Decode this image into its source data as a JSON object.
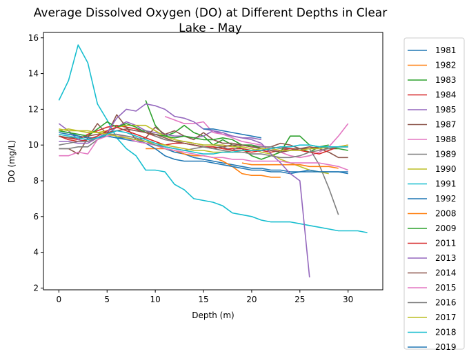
{
  "chart_data": {
    "type": "line",
    "title_line1": "Average Dissolved Oxygen (DO) at Different Depths in Clear",
    "title_line2": "Lake - May",
    "xlabel": "Depth (m)",
    "ylabel": "DO (mg/L)",
    "xlim": [
      -1.6,
      33.6
    ],
    "ylim": [
      1.9,
      16.3
    ],
    "xticks": [
      0,
      5,
      10,
      15,
      20,
      25,
      30
    ],
    "yticks": [
      2,
      4,
      6,
      8,
      10,
      12,
      14,
      16
    ],
    "grid": false,
    "legend_position": "outside-right",
    "series": [
      {
        "name": "1981",
        "color": "#1f77b4",
        "x": [
          0,
          1,
          2,
          3,
          4,
          5,
          6,
          7,
          8,
          9,
          10,
          11,
          12,
          13,
          14,
          15,
          16,
          17,
          18,
          19,
          20,
          21,
          22,
          23,
          24,
          25,
          26,
          27,
          28,
          29,
          30
        ],
        "y": [
          10.8,
          10.7,
          10.5,
          10.4,
          10.4,
          10.5,
          10.4,
          10.3,
          10.2,
          10.1,
          10.0,
          9.8,
          9.6,
          9.5,
          9.3,
          9.2,
          9.1,
          9.0,
          8.9,
          8.8,
          8.7,
          8.7,
          8.6,
          8.6,
          8.5,
          8.5,
          8.5,
          8.5,
          8.5,
          8.5,
          8.5
        ]
      },
      {
        "name": "1982",
        "color": "#ff7f0e",
        "x": [
          9,
          10,
          11,
          12,
          13,
          14,
          15,
          16,
          17,
          18,
          19,
          20,
          21,
          22,
          23
        ],
        "y": [
          9.8,
          9.8,
          9.8,
          9.7,
          9.5,
          9.4,
          9.4,
          9.3,
          9.1,
          8.8,
          8.4,
          8.3,
          8.3,
          8.2,
          8.2
        ]
      },
      {
        "name": "1983",
        "color": "#2ca02c",
        "x": [
          9,
          10,
          11,
          12,
          13,
          14,
          15,
          16,
          17,
          18,
          19,
          20,
          21,
          22,
          23,
          24,
          25,
          26,
          27,
          28
        ],
        "y": [
          12.5,
          11.1,
          10.5,
          10.7,
          11.1,
          10.7,
          10.5,
          10.0,
          10.3,
          10.0,
          9.8,
          9.4,
          9.2,
          9.4,
          9.6,
          9.7,
          9.8,
          9.6,
          9.9,
          10.0
        ]
      },
      {
        "name": "1984",
        "color": "#d62728",
        "x": [
          0,
          1,
          2,
          3,
          4,
          5,
          6,
          7,
          8,
          9,
          10,
          11,
          12,
          13,
          14,
          15,
          16,
          17,
          18,
          19,
          20,
          21,
          22,
          23,
          24,
          25,
          26,
          27,
          28,
          29
        ],
        "y": [
          10.5,
          10.4,
          10.3,
          10.6,
          10.8,
          11.0,
          11.1,
          11.0,
          10.9,
          10.7,
          10.5,
          10.3,
          10.2,
          10.1,
          10.0,
          9.9,
          9.9,
          9.8,
          9.8,
          9.8,
          9.7,
          9.7,
          9.6,
          9.7,
          9.8,
          9.8,
          9.8,
          9.9,
          9.9,
          9.9
        ]
      },
      {
        "name": "1985",
        "color": "#9467bd",
        "x": [
          0,
          1,
          2,
          3,
          4,
          5,
          6,
          7,
          8,
          9,
          10,
          11,
          12,
          13,
          14,
          15,
          16,
          17,
          18,
          19,
          20,
          21
        ],
        "y": [
          11.2,
          10.8,
          10.3,
          10.2,
          10.4,
          10.6,
          11.0,
          11.3,
          11.1,
          10.8,
          10.7,
          10.6,
          10.5,
          10.5,
          10.4,
          10.5,
          10.8,
          10.6,
          10.5,
          10.4,
          10.4,
          10.3
        ]
      },
      {
        "name": "1987",
        "color": "#8c564b",
        "x": [
          0,
          1,
          2,
          3,
          4,
          5,
          6,
          7,
          8,
          9,
          10,
          11,
          12,
          13,
          14,
          15,
          16,
          17,
          18,
          19,
          20,
          21,
          22,
          23,
          24,
          25,
          26,
          27,
          28,
          29,
          30
        ],
        "y": [
          9.8,
          9.8,
          9.5,
          10.4,
          11.2,
          10.6,
          11.7,
          11.0,
          10.3,
          10.4,
          11.0,
          10.6,
          10.8,
          10.5,
          10.3,
          10.7,
          10.3,
          10.1,
          10.1,
          10.0,
          9.9,
          9.9,
          9.9,
          10.1,
          10.0,
          9.8,
          9.9,
          9.8,
          9.6,
          9.3,
          9.3
        ]
      },
      {
        "name": "1988",
        "color": "#e377c2",
        "x": [
          11,
          12,
          13,
          14,
          15,
          16,
          17,
          18,
          19,
          20,
          21,
          22,
          23,
          24,
          25,
          26,
          27,
          28,
          29,
          30
        ],
        "y": [
          11.6,
          11.4,
          11.2,
          11.2,
          11.3,
          10.7,
          10.6,
          10.4,
          10.2,
          10.1,
          10.0,
          9.8,
          9.6,
          9.4,
          9.3,
          9.4,
          9.6,
          9.9,
          10.5,
          11.2
        ]
      },
      {
        "name": "1989",
        "color": "#7f7f7f",
        "x": [
          0,
          1,
          2,
          3,
          4,
          5,
          6,
          7,
          8,
          9,
          10,
          11,
          12,
          13,
          14,
          15,
          16,
          17,
          18,
          19,
          20,
          21,
          22,
          23,
          24,
          25,
          26,
          27,
          28,
          29
        ],
        "y": [
          9.8,
          9.8,
          9.9,
          9.9,
          10.3,
          10.6,
          10.8,
          10.9,
          10.8,
          10.8,
          10.5,
          10.3,
          10.2,
          10.2,
          10.1,
          10.0,
          10.0,
          9.9,
          9.7,
          10.0,
          10.0,
          9.9,
          9.9,
          9.8,
          9.8,
          9.8,
          9.8,
          8.9,
          7.6,
          6.1
        ]
      },
      {
        "name": "1990",
        "color": "#bcbd22",
        "x": [
          0,
          1,
          2,
          3,
          4,
          5,
          6,
          7,
          8,
          9,
          10,
          11,
          12,
          13,
          14,
          15,
          16,
          17,
          18,
          19,
          20,
          21,
          22,
          23,
          24,
          25,
          26,
          27,
          28
        ],
        "y": [
          10.8,
          10.9,
          10.8,
          10.8,
          10.7,
          10.8,
          11.0,
          11.1,
          11.1,
          11.1,
          10.8,
          10.5,
          10.3,
          10.2,
          10.1,
          10.0,
          10.0,
          10.0,
          9.9,
          9.9,
          9.8,
          9.6,
          9.5,
          9.2,
          9.0,
          8.8,
          8.6,
          8.5,
          8.4
        ]
      },
      {
        "name": "1991",
        "color": "#17becf",
        "x": [
          0,
          1,
          2,
          3,
          4,
          5,
          6,
          7,
          8,
          9,
          10,
          11,
          12,
          13,
          14,
          15,
          16,
          17,
          18,
          19,
          20,
          21,
          22,
          23,
          24,
          25,
          26,
          27,
          28,
          29,
          30,
          31,
          32
        ],
        "y": [
          12.5,
          13.6,
          15.6,
          14.6,
          12.3,
          11.4,
          10.4,
          9.8,
          9.4,
          8.6,
          8.6,
          8.5,
          7.8,
          7.5,
          7.0,
          6.9,
          6.8,
          6.6,
          6.2,
          6.1,
          6.0,
          5.8,
          5.7,
          5.7,
          5.7,
          5.6,
          5.5,
          5.4,
          5.3,
          5.2,
          5.2,
          5.2,
          5.1
        ]
      },
      {
        "name": "1992",
        "color": "#1f77b4",
        "x": [
          0,
          1,
          2,
          3,
          4,
          5,
          6,
          7,
          8,
          9,
          10,
          11,
          12,
          13,
          14,
          15,
          16,
          17,
          18,
          19,
          20,
          21,
          22,
          23,
          24,
          25,
          26,
          27,
          28,
          29,
          30
        ],
        "y": [
          10.7,
          10.6,
          10.5,
          10.4,
          10.4,
          10.5,
          10.4,
          10.4,
          10.3,
          10.1,
          9.8,
          9.4,
          9.2,
          9.1,
          9.1,
          9.1,
          9.0,
          8.9,
          8.8,
          8.7,
          8.6,
          8.6,
          8.5,
          8.5,
          8.4,
          8.5,
          8.6,
          8.5,
          8.5,
          8.5,
          8.4
        ]
      },
      {
        "name": "2008",
        "color": "#ff7f0e",
        "x": [
          19,
          20,
          21,
          22,
          23,
          24,
          25,
          26,
          27,
          28,
          29
        ],
        "y": [
          9.0,
          8.9,
          8.9,
          8.9,
          8.9,
          8.9,
          8.9,
          8.8,
          8.8,
          8.8,
          8.7
        ]
      },
      {
        "name": "2009",
        "color": "#2ca02c",
        "x": [
          0,
          1,
          2,
          3,
          4,
          5,
          6,
          7,
          8,
          9,
          10,
          11,
          12,
          13,
          14,
          15,
          16,
          17,
          18,
          19,
          20,
          21,
          22,
          23,
          24,
          25,
          26,
          27,
          28,
          29,
          30
        ],
        "y": [
          10.8,
          10.7,
          10.6,
          10.5,
          10.9,
          11.3,
          11.0,
          11.2,
          11.0,
          10.7,
          10.6,
          10.5,
          10.4,
          10.5,
          10.4,
          10.3,
          10.3,
          10.4,
          10.3,
          10.0,
          10.0,
          9.8,
          9.7,
          9.6,
          10.5,
          10.5,
          10.0,
          9.9,
          9.8,
          9.8,
          9.7
        ]
      },
      {
        "name": "2011",
        "color": "#d62728",
        "x": [
          0,
          1,
          2,
          3,
          4,
          5,
          6,
          7,
          8,
          9,
          10,
          11,
          12,
          13,
          14,
          15,
          16,
          17,
          18,
          19,
          20,
          21,
          22,
          23,
          24,
          25,
          26,
          27,
          28,
          29,
          30
        ],
        "y": [
          10.5,
          10.3,
          10.2,
          10.3,
          10.5,
          10.8,
          11.0,
          10.8,
          10.6,
          10.4,
          10.2,
          10.0,
          10.1,
          10.1,
          10.0,
          9.9,
          9.9,
          9.8,
          9.7,
          9.7,
          9.6,
          9.7,
          9.8,
          9.9,
          9.8,
          9.7,
          9.6,
          9.5,
          9.7,
          9.9,
          10.0
        ]
      },
      {
        "name": "2013",
        "color": "#9467bd",
        "x": [
          0,
          1,
          2,
          3,
          4,
          5,
          6,
          7,
          8,
          9,
          10,
          11,
          12,
          13,
          14,
          15,
          16,
          17,
          18,
          19,
          20,
          21,
          22,
          23,
          24,
          25,
          26
        ],
        "y": [
          10.2,
          10.2,
          10.1,
          10.1,
          10.4,
          10.7,
          11.5,
          12.0,
          11.9,
          12.3,
          12.2,
          12.0,
          11.6,
          11.5,
          11.3,
          10.9,
          10.8,
          10.7,
          10.5,
          10.4,
          10.3,
          10.1,
          9.5,
          9.0,
          8.4,
          8.0,
          2.6
        ]
      },
      {
        "name": "2014",
        "color": "#8c564b",
        "x": [
          0,
          1,
          2,
          3,
          4,
          5,
          6,
          7,
          8,
          9,
          10,
          11,
          12,
          13,
          14,
          15,
          16,
          17,
          18,
          19,
          20,
          21,
          22,
          23,
          24,
          25,
          26,
          27,
          28,
          29,
          30
        ],
        "y": [
          10.5,
          10.4,
          10.4,
          10.5,
          10.6,
          10.7,
          10.8,
          10.9,
          10.8,
          10.7,
          10.6,
          10.4,
          10.2,
          10.1,
          10.0,
          9.9,
          9.8,
          9.9,
          10.0,
          10.0,
          9.9,
          9.8,
          9.7,
          9.6,
          9.7,
          9.8,
          9.8,
          9.9,
          9.8,
          9.9,
          9.9
        ]
      },
      {
        "name": "2015",
        "color": "#e377c2",
        "x": [
          0,
          1,
          2,
          3,
          4,
          5,
          6,
          7,
          8,
          9,
          10,
          11,
          12,
          13,
          14,
          15,
          16,
          17,
          18,
          19,
          20,
          21,
          22,
          23,
          24,
          25,
          26,
          27,
          28,
          29,
          30
        ],
        "y": [
          9.4,
          9.4,
          9.6,
          9.5,
          10.3,
          10.5,
          10.6,
          10.4,
          10.2,
          10.1,
          10.0,
          9.8,
          9.7,
          9.6,
          9.5,
          9.4,
          9.3,
          9.3,
          9.2,
          9.2,
          9.1,
          9.1,
          9.1,
          9.1,
          9.0,
          9.0,
          9.0,
          9.0,
          8.9,
          8.8,
          8.6
        ]
      },
      {
        "name": "2016",
        "color": "#7f7f7f",
        "x": [
          0,
          1,
          2,
          3,
          4,
          5,
          6,
          7,
          8,
          9,
          10,
          11,
          12,
          13,
          14,
          15,
          16,
          17,
          18,
          19,
          20,
          21,
          22,
          23,
          24,
          25,
          26,
          27,
          28,
          29,
          30
        ],
        "y": [
          10.0,
          10.1,
          10.2,
          10.2,
          10.4,
          10.6,
          10.6,
          10.5,
          10.4,
          10.2,
          10.0,
          9.9,
          9.8,
          9.7,
          9.8,
          9.9,
          9.8,
          9.7,
          9.6,
          9.6,
          9.5,
          9.5,
          9.4,
          9.3,
          9.3,
          9.4,
          9.6,
          9.7,
          9.8,
          9.9,
          9.9
        ]
      },
      {
        "name": "2017",
        "color": "#bcbd22",
        "x": [
          0,
          1,
          2,
          3,
          4,
          5,
          6,
          7,
          8,
          9,
          10,
          11,
          12,
          13,
          14,
          15,
          16,
          17,
          18,
          19,
          20,
          21,
          22,
          23,
          24,
          25,
          26,
          27,
          28,
          29,
          30
        ],
        "y": [
          10.9,
          10.8,
          10.8,
          10.7,
          10.7,
          10.6,
          10.5,
          10.4,
          10.3,
          10.2,
          10.1,
          10.0,
          9.9,
          9.8,
          9.7,
          9.7,
          9.6,
          9.6,
          9.6,
          9.7,
          9.7,
          9.8,
          9.8,
          9.7,
          9.7,
          9.7,
          9.8,
          9.8,
          9.9,
          9.9,
          10.0
        ]
      },
      {
        "name": "2018",
        "color": "#17becf",
        "x": [
          0,
          1,
          2,
          3,
          4,
          5,
          6,
          7,
          8,
          9,
          10,
          11,
          12,
          13,
          14,
          15,
          16,
          17,
          18,
          19,
          20,
          21,
          22,
          23,
          24,
          25,
          26,
          27,
          28,
          29,
          30
        ],
        "y": [
          10.6,
          10.5,
          10.4,
          10.3,
          10.4,
          10.6,
          10.8,
          10.7,
          10.5,
          10.3,
          10.1,
          9.9,
          9.8,
          9.7,
          9.6,
          9.5,
          9.5,
          9.6,
          9.6,
          9.7,
          9.7,
          9.7,
          9.8,
          9.9,
          9.9,
          10.0,
          10.0,
          9.9,
          9.9,
          9.9,
          9.9
        ]
      },
      {
        "name": "2019",
        "color": "#1f77b4",
        "x": [
          15,
          16,
          17,
          18,
          19,
          20,
          21
        ],
        "y": [
          10.9,
          10.9,
          10.8,
          10.7,
          10.6,
          10.5,
          10.4
        ]
      }
    ]
  }
}
